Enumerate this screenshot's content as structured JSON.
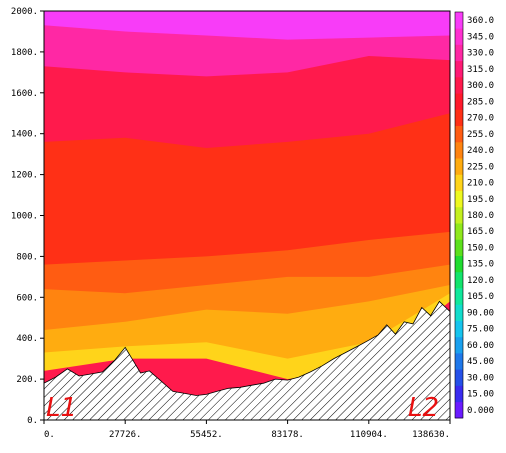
{
  "chart_data": {
    "type": "heatmap",
    "title": "",
    "xlabel": "",
    "ylabel": "",
    "xlim": [
      0,
      138630
    ],
    "ylim": [
      0,
      2000
    ],
    "x_ticks": [
      "0.",
      "27726.",
      "55452.",
      "83178.",
      "110904.",
      "138630."
    ],
    "y_ticks": [
      "0.",
      "200.",
      "400.",
      "600.",
      "800.",
      "1000.",
      "1200.",
      "1400.",
      "1600.",
      "1800.",
      "2000."
    ],
    "colorbar": {
      "min": 0,
      "max": 360,
      "step": 15,
      "labels": [
        "0.000",
        "15.00",
        "30.00",
        "45.00",
        "60.00",
        "75.00",
        "90.00",
        "105.0",
        "120.0",
        "135.0",
        "150.0",
        "165.0",
        "180.0",
        "195.0",
        "210.0",
        "225.0",
        "240.0",
        "255.0",
        "270.0",
        "285.0",
        "300.0",
        "315.0",
        "330.0",
        "345.0",
        "360.0"
      ],
      "colors": [
        "#6a1bff",
        "#3a2cf0",
        "#2550e8",
        "#1f78ea",
        "#1aa0ee",
        "#16c4ee",
        "#12dccc",
        "#10e89c",
        "#12e46c",
        "#20dc30",
        "#5ce01c",
        "#90e81c",
        "#c4f020",
        "#eef820",
        "#ffd41a",
        "#ffac10",
        "#ff8410",
        "#ff5c12",
        "#ff3016",
        "#ff1a2c",
        "#ff1a4c",
        "#ff1a74",
        "#ff28a4",
        "#ff30d0",
        "#f83cf8"
      ]
    },
    "terrain_profile": {
      "x": [
        0,
        4000,
        8000,
        12000,
        16000,
        20000,
        24000,
        27726,
        30000,
        33000,
        36000,
        40000,
        44000,
        48000,
        52000,
        55452,
        59000,
        63000,
        67000,
        71000,
        75000,
        79000,
        83178,
        87000,
        91000,
        95000,
        99000,
        103000,
        107000,
        110904,
        114000,
        117000,
        120000,
        123000,
        126000,
        129000,
        132000,
        135000,
        138630
      ],
      "y": [
        180,
        210,
        250,
        215,
        225,
        235,
        290,
        355,
        300,
        230,
        240,
        190,
        140,
        130,
        120,
        125,
        140,
        155,
        160,
        170,
        180,
        200,
        195,
        210,
        235,
        265,
        300,
        330,
        360,
        390,
        415,
        465,
        420,
        480,
        470,
        550,
        510,
        580,
        530
      ]
    },
    "field_bands": [
      {
        "level": 360,
        "y_lower": [
          1930,
          1900,
          1880,
          1860,
          1870,
          1880
        ]
      },
      {
        "level": 330,
        "y_lower": [
          1730,
          1700,
          1680,
          1700,
          1780,
          1760
        ]
      },
      {
        "level": 300,
        "y_lower": [
          1360,
          1380,
          1330,
          1360,
          1400,
          1500
        ]
      },
      {
        "level": 270,
        "y_lower": [
          760,
          780,
          800,
          830,
          880,
          920
        ]
      },
      {
        "level": 255,
        "y_lower": [
          640,
          620,
          660,
          700,
          700,
          760
        ]
      },
      {
        "level": 240,
        "y_lower": [
          440,
          480,
          540,
          520,
          580,
          660
        ]
      },
      {
        "level": 225,
        "y_lower": [
          330,
          360,
          380,
          300,
          380,
          620
        ]
      },
      {
        "level": 210,
        "y_lower": [
          240,
          300,
          300,
          200,
          260,
          580
        ]
      }
    ],
    "annotations": [
      "L1",
      "L2"
    ]
  }
}
